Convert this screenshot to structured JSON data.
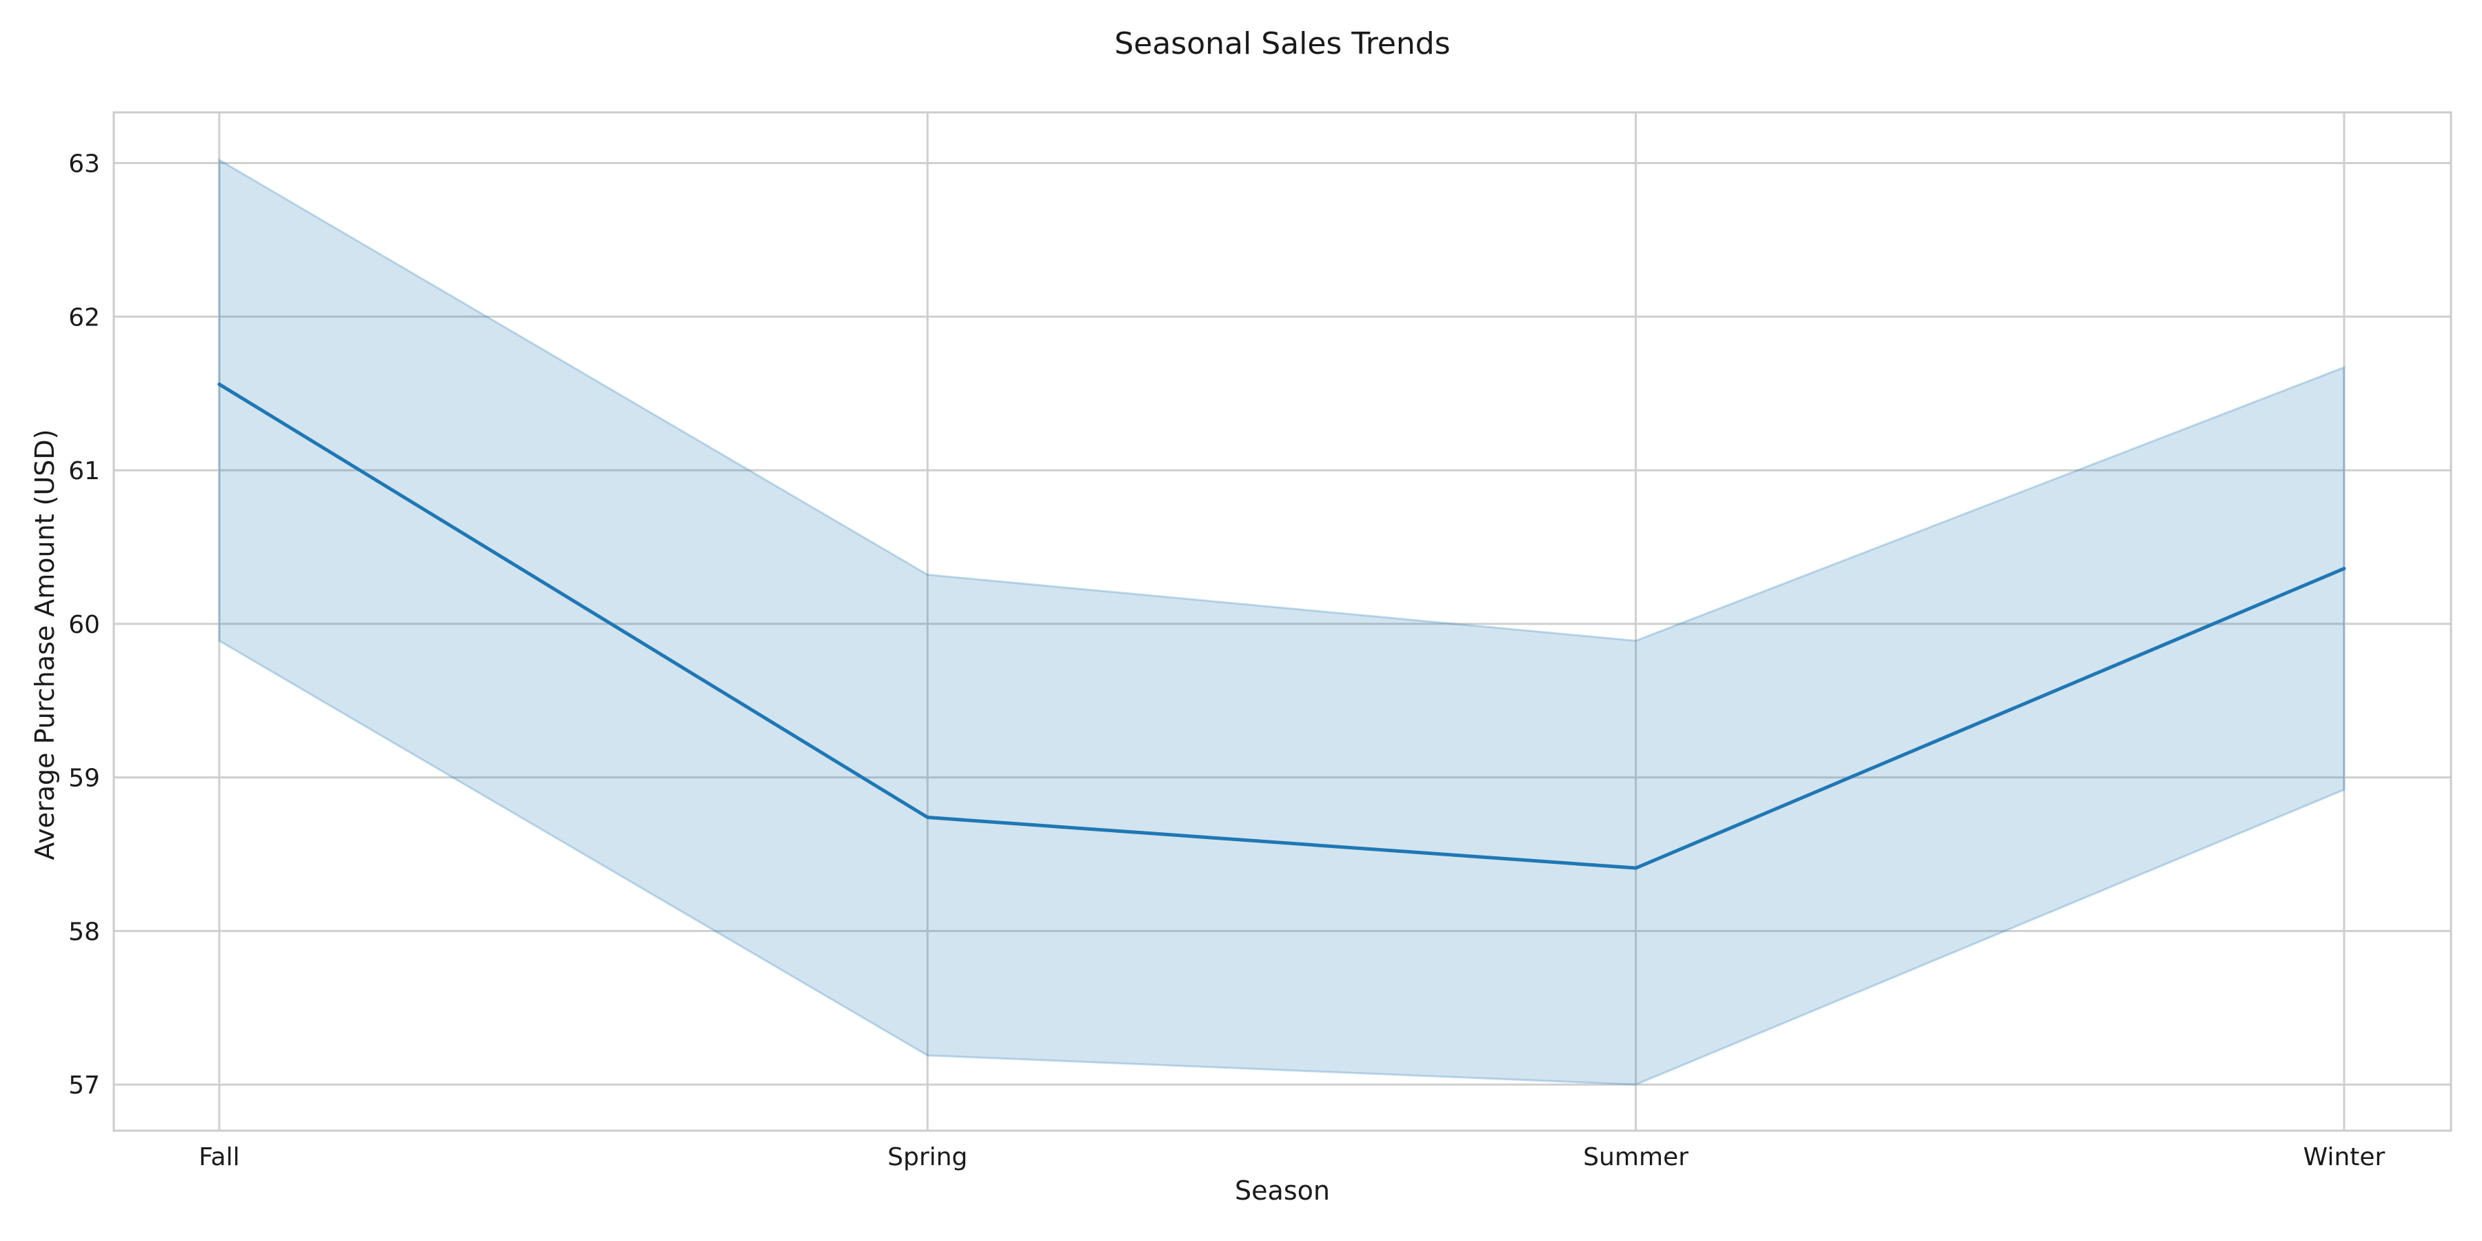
{
  "chart_data": {
    "type": "line",
    "title": "Seasonal Sales Trends",
    "xlabel": "Season",
    "ylabel": "Average Purchase Amount (USD)",
    "categories": [
      "Fall",
      "Spring",
      "Summer",
      "Winter"
    ],
    "series": [
      {
        "values": [
          61.56,
          58.74,
          58.41,
          60.36
        ],
        "ci_lower": [
          59.89,
          57.19,
          57.0,
          58.92
        ],
        "ci_upper": [
          63.02,
          60.32,
          59.89,
          61.67
        ]
      }
    ],
    "ylim": [
      56.7,
      63.33
    ],
    "yticks": [
      57,
      58,
      59,
      60,
      61,
      62,
      63
    ],
    "ytick_labels": [
      "57",
      "58",
      "59",
      "60",
      "61",
      "62",
      "63"
    ],
    "grid": true,
    "line_color": "#1f77b4",
    "band_color": "#1f77b4"
  }
}
